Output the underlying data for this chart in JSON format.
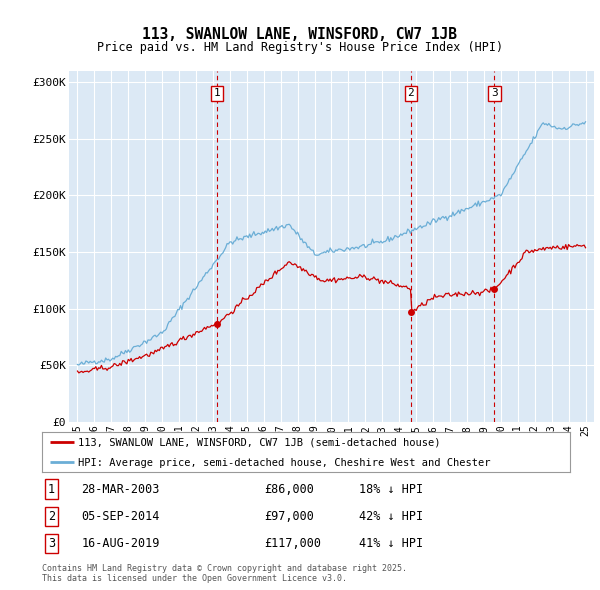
{
  "title1": "113, SWANLOW LANE, WINSFORD, CW7 1JB",
  "title2": "Price paid vs. HM Land Registry's House Price Index (HPI)",
  "ylabel_ticks": [
    "£0",
    "£50K",
    "£100K",
    "£150K",
    "£200K",
    "£250K",
    "£300K"
  ],
  "ytick_vals": [
    0,
    50000,
    100000,
    150000,
    200000,
    250000,
    300000
  ],
  "ylim": [
    0,
    310000
  ],
  "xlim_start": 1994.5,
  "xlim_end": 2025.5,
  "sale_dates": [
    2003.24,
    2014.68,
    2019.62
  ],
  "sale_prices": [
    86000,
    97000,
    117000
  ],
  "sale_labels": [
    "1",
    "2",
    "3"
  ],
  "legend_line1": "113, SWANLOW LANE, WINSFORD, CW7 1JB (semi-detached house)",
  "legend_line2": "HPI: Average price, semi-detached house, Cheshire West and Chester",
  "table_rows": [
    {
      "num": "1",
      "date": "28-MAR-2003",
      "price": "£86,000",
      "pct": "18% ↓ HPI"
    },
    {
      "num": "2",
      "date": "05-SEP-2014",
      "price": "£97,000",
      "pct": "42% ↓ HPI"
    },
    {
      "num": "3",
      "date": "16-AUG-2019",
      "price": "£117,000",
      "pct": "41% ↓ HPI"
    }
  ],
  "footer": "Contains HM Land Registry data © Crown copyright and database right 2025.\nThis data is licensed under the Open Government Licence v3.0.",
  "hpi_color": "#6baed6",
  "price_color": "#cc0000",
  "bg_color": "#dce9f5",
  "grid_color": "#ffffff",
  "sale_line_color": "#cc0000",
  "box_color": "#cc0000"
}
